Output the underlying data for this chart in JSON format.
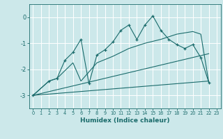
{
  "xlabel": "Humidex (Indice chaleur)",
  "ylabel": "",
  "xlim": [
    -0.5,
    23.5
  ],
  "ylim": [
    -3.5,
    0.5
  ],
  "yticks": [
    0,
    -1,
    -2,
    -3
  ],
  "xticks": [
    0,
    1,
    2,
    3,
    4,
    5,
    6,
    7,
    8,
    9,
    10,
    11,
    12,
    13,
    14,
    15,
    16,
    17,
    18,
    19,
    20,
    21,
    22,
    23
  ],
  "bg_color": "#cce8ea",
  "line_color": "#1a6b6b",
  "grid_color": "#ffffff",
  "curve1_x": [
    0,
    2,
    3,
    4,
    5,
    6,
    7,
    8,
    9,
    10,
    11,
    12,
    13,
    14,
    15,
    16,
    17,
    18,
    19,
    20,
    21,
    22
  ],
  "curve1_y": [
    -3.0,
    -2.45,
    -2.35,
    -1.65,
    -1.35,
    -0.85,
    -2.55,
    -1.45,
    -1.25,
    -0.95,
    -0.5,
    -0.3,
    -0.85,
    -0.3,
    0.05,
    -0.5,
    -0.85,
    -1.05,
    -1.2,
    -1.05,
    -1.55,
    -2.5
  ],
  "curve2_x": [
    0,
    2,
    3,
    5,
    6,
    8,
    10,
    12,
    14,
    16,
    18,
    20,
    21,
    22
  ],
  "curve2_y": [
    -3.0,
    -2.45,
    -2.35,
    -1.75,
    -2.45,
    -1.75,
    -1.5,
    -1.2,
    -1.0,
    -0.85,
    -0.65,
    -0.55,
    -0.65,
    -2.5
  ],
  "line1_x": [
    0,
    22
  ],
  "line1_y": [
    -3.0,
    -1.4
  ],
  "line2_x": [
    0,
    22
  ],
  "line2_y": [
    -3.0,
    -2.45
  ]
}
